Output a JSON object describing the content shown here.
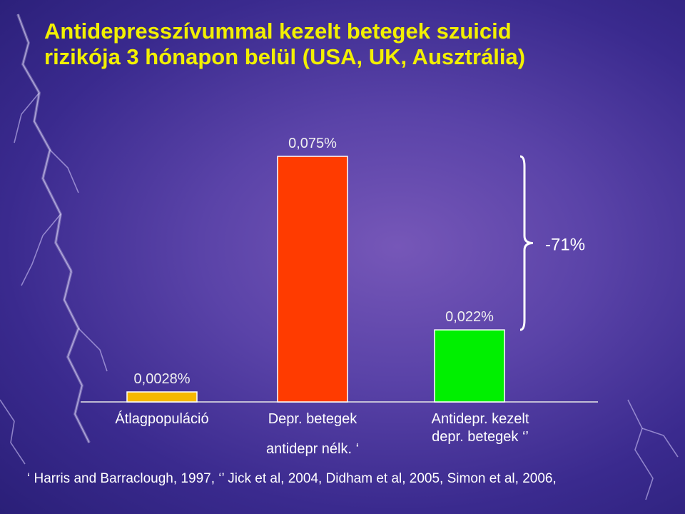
{
  "title": {
    "line1": "Antidepresszívummal kezelt betegek szuicid",
    "line2": "rizikója 3 hónapon belül  (USA, UK, Ausztrália)"
  },
  "chart_data": {
    "type": "bar",
    "title": "Antidepresszívummal kezelt betegek szuicid rizikója 3 hónapon belül (USA, UK, Ausztrália)",
    "unit": "%",
    "categories": [
      {
        "lines": [
          "Átlagpopuláció"
        ]
      },
      {
        "lines": [
          "Depr. betegek",
          "antidepr nélk. ‘"
        ]
      },
      {
        "lines": [
          "Antidepr. kezelt",
          "depr. betegek ‘’"
        ]
      }
    ],
    "values": [
      0.0028,
      0.075,
      0.022
    ],
    "value_labels": [
      "0,0028%",
      "0,075%",
      "0,022%"
    ],
    "colors": [
      "#f5b800",
      "#ff3b00",
      "#00f000"
    ],
    "ylim": [
      0,
      0.075
    ],
    "annotation": {
      "text": "-71%",
      "between": [
        1,
        2
      ]
    },
    "grid": false,
    "legend": "none"
  },
  "citation": "‘ Harris and Barraclough, 1997, ‘’ Jick et al, 2004, Didham et al, 2005, Simon et al, 2006,"
}
